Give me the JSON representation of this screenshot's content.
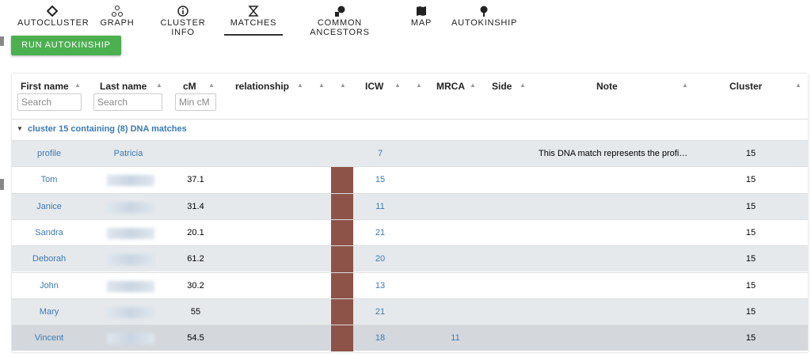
{
  "tabs": [
    "AUTOCLUSTER",
    "GRAPH",
    "CLUSTER INFO",
    "MATCHES",
    "COMMON ANCESTORS",
    "MAP",
    "AUTOKINSHIP"
  ],
  "button": "RUN AUTOKINSHIP",
  "table": {
    "columns": [
      "First name",
      "Last name",
      "cM",
      "relationship",
      "ICW",
      "MRCA",
      "Side",
      "Note",
      "Cluster"
    ],
    "filters": [
      "Search",
      "Search",
      "Min cM"
    ],
    "group": "cluster 15 containing (8) DNA matches",
    "rows": [
      {
        "first": "profile",
        "last": "Patricia",
        "cm": null,
        "icw": 7,
        "mrca": null,
        "note": "This DNA match represents the profi…",
        "cluster": 15
      },
      {
        "first": "Tom",
        "last": null,
        "cm": 37.1,
        "icw": 15,
        "mrca": null,
        "note": null,
        "cluster": 15
      },
      {
        "first": "Janice",
        "last": null,
        "cm": 31.4,
        "icw": 11,
        "mrca": null,
        "note": null,
        "cluster": 15
      },
      {
        "first": "Sandra",
        "last": null,
        "cm": 20.1,
        "icw": 21,
        "mrca": null,
        "note": null,
        "cluster": 15
      },
      {
        "first": "Deborah",
        "last": null,
        "cm": 61.2,
        "icw": 20,
        "mrca": null,
        "note": null,
        "cluster": 15
      },
      {
        "first": "John",
        "last": null,
        "cm": 30.2,
        "icw": 13,
        "mrca": null,
        "note": null,
        "cluster": 15
      },
      {
        "first": "Mary",
        "last": null,
        "cm": 55,
        "icw": 21,
        "mrca": null,
        "note": null,
        "cluster": 15
      },
      {
        "first": "Vincent",
        "last": null,
        "cm": 54.5,
        "icw": 18,
        "mrca": 11,
        "note": null,
        "cluster": 15
      }
    ]
  }
}
